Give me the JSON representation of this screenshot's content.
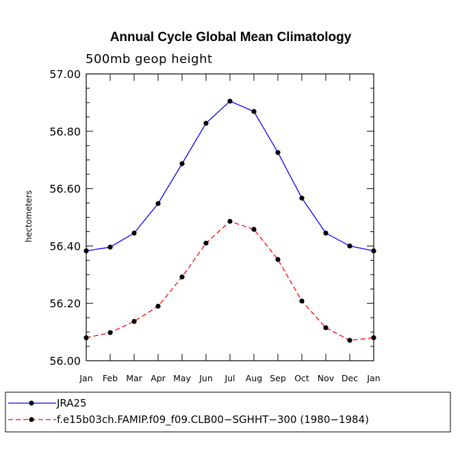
{
  "chart_data": {
    "type": "line",
    "title": "Annual Cycle Global Mean Climatology",
    "subtitle": "500mb geop height",
    "xlabel": "",
    "ylabel": "hectometers",
    "categories": [
      "Jan",
      "Feb",
      "Mar",
      "Apr",
      "May",
      "Jun",
      "Jul",
      "Aug",
      "Sep",
      "Oct",
      "Nov",
      "Dec",
      "Jan"
    ],
    "ylim": [
      56.0,
      57.0
    ],
    "yticks": [
      "56.00",
      "56.20",
      "56.40",
      "56.60",
      "56.80",
      "57.00"
    ],
    "grid": false,
    "legend_position": "bottom",
    "series": [
      {
        "name": "JRA25",
        "color": "#0000ff",
        "line_style": "solid",
        "marker": "filled-circle",
        "values": [
          56.383,
          56.396,
          56.445,
          56.548,
          56.687,
          56.828,
          56.905,
          56.869,
          56.726,
          56.567,
          56.445,
          56.4,
          56.383
        ]
      },
      {
        "name": "f.e15b03ch.FAMIP.f09_f09.CLB00−SGHHT−300 (1980−1984)",
        "color": "#ff0000",
        "line_style": "dashed",
        "marker": "filled-circle",
        "values": [
          56.08,
          56.098,
          56.137,
          56.19,
          56.292,
          56.41,
          56.486,
          56.458,
          56.353,
          56.208,
          56.115,
          56.071,
          56.08
        ]
      }
    ]
  }
}
